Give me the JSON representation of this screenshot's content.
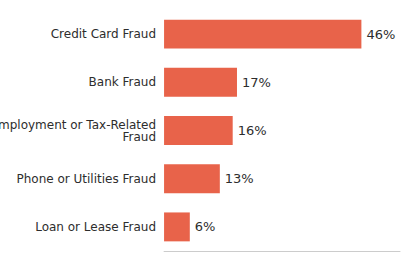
{
  "chart_data": {
    "type": "bar",
    "orientation": "horizontal",
    "categories": [
      "Loan or Lease Fraud",
      "Phone or Utilities Fraud",
      "Employment or Tax-Related\nFraud",
      "Bank Fraud",
      "Credit Card Fraud"
    ],
    "values": [
      6,
      13,
      16,
      17,
      46
    ],
    "value_labels": [
      "6%",
      "13%",
      "16%",
      "17%",
      "46%"
    ],
    "data_labels": true,
    "color": "#E8634A",
    "xlim": [
      0,
      55
    ],
    "tick_labels": "y",
    "grid": false
  }
}
